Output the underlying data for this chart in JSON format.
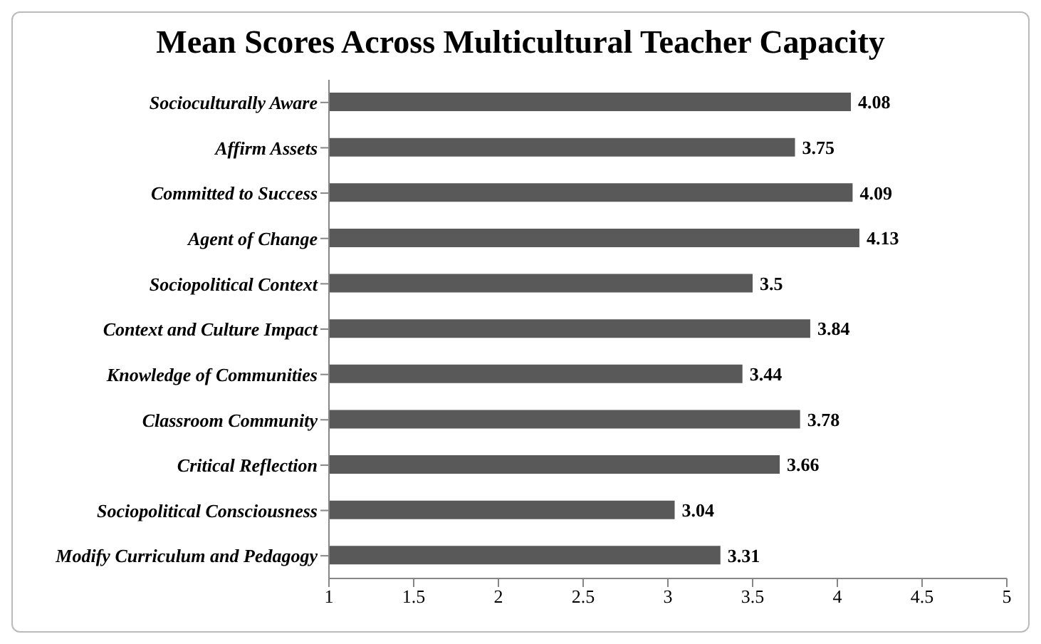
{
  "chart_data": {
    "type": "bar",
    "orientation": "horizontal",
    "title": "Mean Scores Across Multicultural Teacher Capacity",
    "categories": [
      "Socioculturally Aware",
      "Affirm Assets",
      "Committed to Success",
      "Agent of Change",
      "Sociopolitical Context",
      "Context and Culture Impact",
      "Knowledge of Communities",
      "Classroom Community",
      "Critical Reflection",
      "Sociopolitical Consciousness",
      "Modify Curriculum and Pedagogy"
    ],
    "values": [
      4.08,
      3.75,
      4.09,
      4.13,
      3.5,
      3.84,
      3.44,
      3.78,
      3.66,
      3.04,
      3.31
    ],
    "color": "#595959",
    "xlim": [
      1,
      5
    ],
    "xticks": [
      1,
      1.5,
      2,
      2.5,
      3,
      3.5,
      4,
      4.5,
      5
    ],
    "grid": false,
    "data_labels": true
  }
}
